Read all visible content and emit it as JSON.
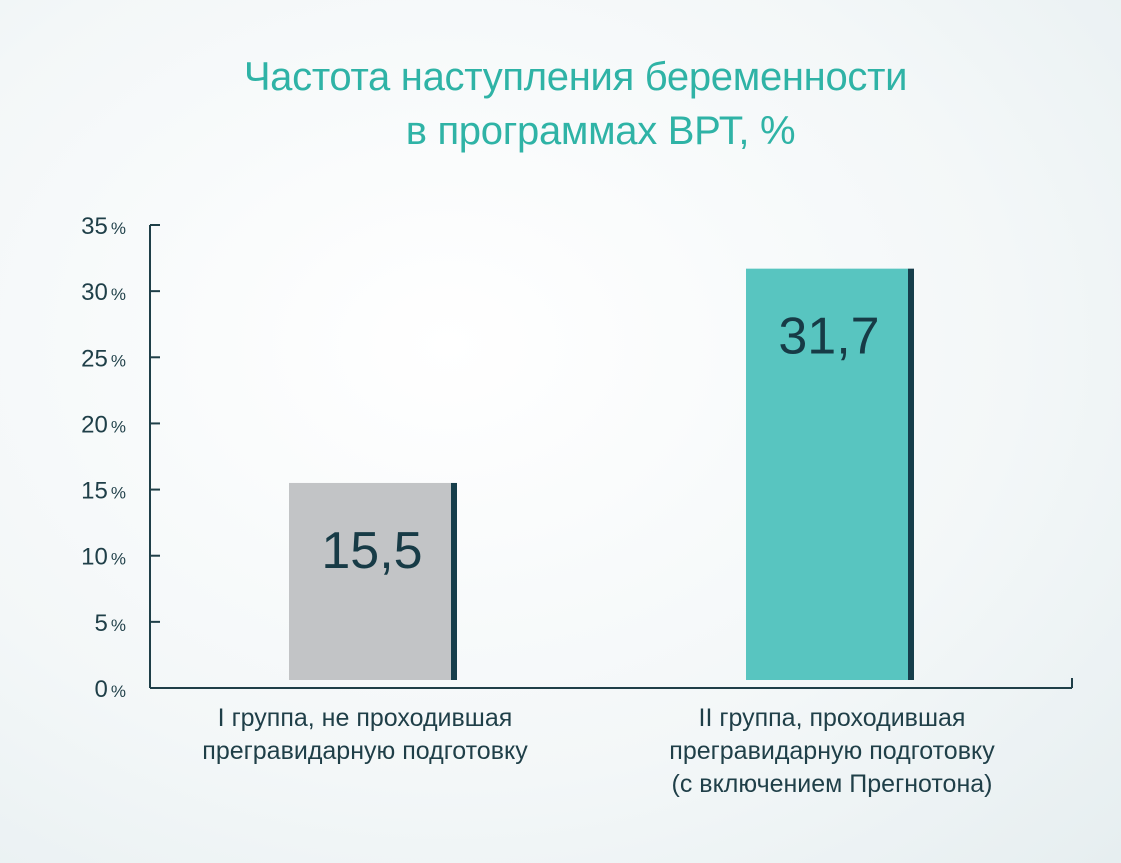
{
  "chart_data": {
    "type": "bar",
    "title_lines": [
      "Частота наступления беременности",
      "в программах  ВРТ, %"
    ],
    "categories": [
      "I группа, не проходившая\nпрегравидарную подготовку",
      "II группа,  проходившая\nпрегравидарную подготовку\n(с включением Прегнотона)"
    ],
    "values": [
      15.5,
      31.7
    ],
    "value_labels": [
      "15,5",
      "31,7"
    ],
    "ylim": [
      0,
      35
    ],
    "yticks": [
      0,
      5,
      10,
      15,
      20,
      25,
      30,
      35
    ],
    "ytick_labels": [
      "0 %",
      "5 %",
      "10 %",
      "15 %",
      "20 %",
      "25 %",
      "30 %",
      "35 %"
    ],
    "grid": false,
    "colors": {
      "bars": [
        "#c2c4c6",
        "#58c5c0"
      ],
      "bar_edge": "#163e4b",
      "axis": "#1f3f48",
      "title": "#2fb3a6"
    }
  }
}
